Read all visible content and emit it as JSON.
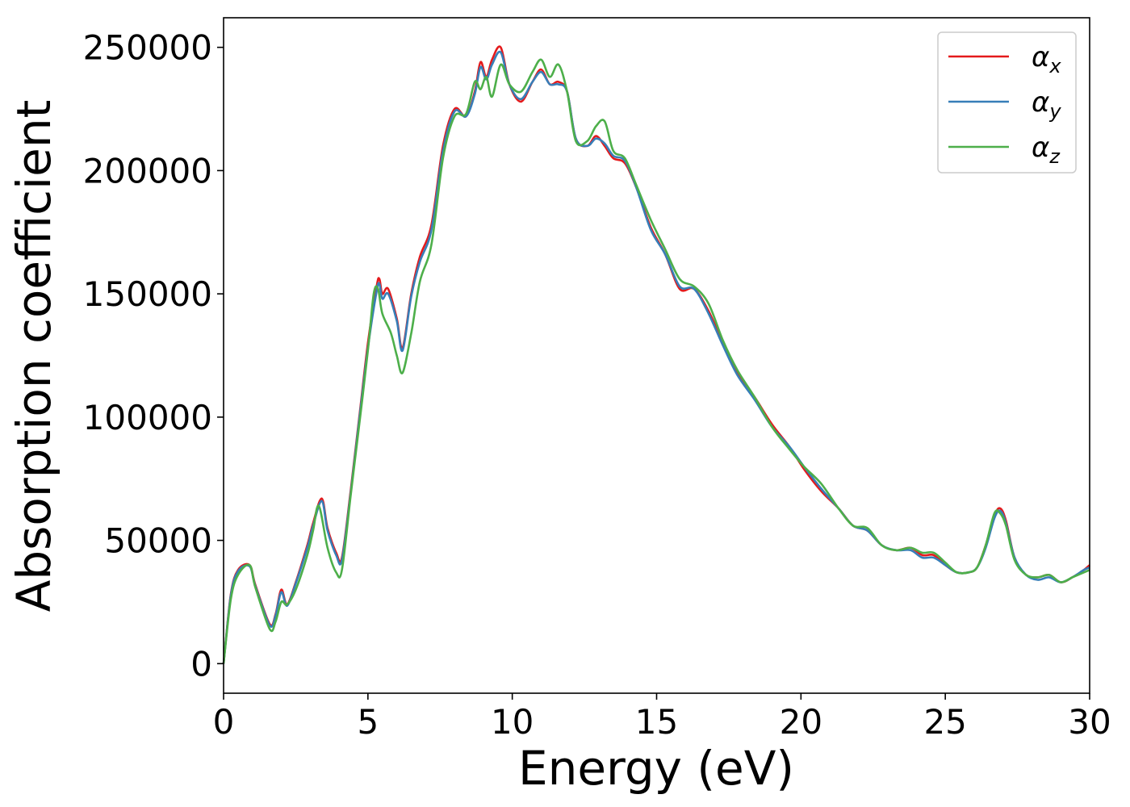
{
  "chart_data": {
    "type": "line",
    "title": "",
    "xlabel": "Energy (eV)",
    "ylabel": "Absorption coefficient",
    "xlim": [
      0,
      30
    ],
    "ylim": [
      -12000,
      262000
    ],
    "xticks": [
      0,
      5,
      10,
      15,
      20,
      25,
      30
    ],
    "xtick_labels": [
      "0",
      "5",
      "10",
      "15",
      "20",
      "25",
      "30"
    ],
    "yticks": [
      0,
      50000,
      100000,
      150000,
      200000,
      250000
    ],
    "ytick_labels": [
      "0",
      "50000",
      "100000",
      "150000",
      "200000",
      "250000"
    ],
    "grid": false,
    "legend_position": "top-right",
    "series": [
      {
        "name": "α",
        "subscript": "x",
        "color": "#e41a1c",
        "x": [
          0,
          0.25,
          0.5,
          0.9,
          1.1,
          1.6,
          1.8,
          2.0,
          2.2,
          2.5,
          2.9,
          3.1,
          3.4,
          3.6,
          3.9,
          4.1,
          4.4,
          4.7,
          5.0,
          5.3,
          5.4,
          5.5,
          5.7,
          6.0,
          6.2,
          6.5,
          6.8,
          7.2,
          7.6,
          8.0,
          8.4,
          8.7,
          8.9,
          9.1,
          9.3,
          9.6,
          9.9,
          10.3,
          10.7,
          11.0,
          11.3,
          11.6,
          11.9,
          12.2,
          12.6,
          12.9,
          13.2,
          13.5,
          13.9,
          14.3,
          14.8,
          15.3,
          15.8,
          16.3,
          16.8,
          17.3,
          17.8,
          18.4,
          19.0,
          19.6,
          20.1,
          20.7,
          21.3,
          21.8,
          22.3,
          22.8,
          23.3,
          23.8,
          24.2,
          24.6,
          25.0,
          25.4,
          25.8,
          26.1,
          26.4,
          26.7,
          26.9,
          27.1,
          27.4,
          27.8,
          28.2,
          28.6,
          29.0,
          29.4,
          29.8,
          30.0
        ],
        "y": [
          0,
          28000,
          38000,
          40000,
          32000,
          16000,
          20000,
          30000,
          24000,
          33000,
          48000,
          57000,
          67000,
          55000,
          45000,
          43000,
          70000,
          100000,
          130000,
          153000,
          156000,
          150000,
          152000,
          140000,
          128000,
          150000,
          165000,
          178000,
          210000,
          225000,
          222000,
          232000,
          244000,
          238000,
          245000,
          250000,
          235000,
          228000,
          236000,
          241000,
          235000,
          236000,
          232000,
          213000,
          210000,
          214000,
          210000,
          205000,
          203000,
          193000,
          177000,
          166000,
          152000,
          152000,
          143000,
          130000,
          118000,
          108000,
          97000,
          88000,
          79000,
          70000,
          63000,
          56000,
          54000,
          48000,
          46000,
          47000,
          44000,
          44000,
          40000,
          37000,
          37000,
          39000,
          48000,
          60000,
          63000,
          58000,
          43000,
          36000,
          35000,
          36000,
          33000,
          35000,
          38000,
          40000
        ]
      },
      {
        "name": "α",
        "subscript": "y",
        "color": "#377eb8",
        "x": [
          0,
          0.25,
          0.5,
          0.9,
          1.1,
          1.6,
          1.8,
          2.0,
          2.2,
          2.5,
          2.9,
          3.1,
          3.4,
          3.6,
          3.9,
          4.1,
          4.4,
          4.7,
          5.0,
          5.3,
          5.4,
          5.5,
          5.7,
          6.0,
          6.2,
          6.5,
          6.8,
          7.2,
          7.6,
          8.0,
          8.4,
          8.7,
          8.9,
          9.1,
          9.3,
          9.6,
          9.9,
          10.3,
          10.7,
          11.0,
          11.3,
          11.6,
          11.9,
          12.2,
          12.6,
          12.9,
          13.2,
          13.5,
          13.9,
          14.3,
          14.8,
          15.3,
          15.8,
          16.3,
          16.8,
          17.3,
          17.8,
          18.4,
          19.0,
          19.6,
          20.1,
          20.7,
          21.3,
          21.8,
          22.3,
          22.8,
          23.3,
          23.8,
          24.2,
          24.6,
          25.0,
          25.4,
          25.8,
          26.1,
          26.4,
          26.7,
          26.9,
          27.1,
          27.4,
          27.8,
          28.2,
          28.6,
          29.0,
          29.4,
          29.8,
          30.0
        ],
        "y": [
          0,
          27500,
          37500,
          39500,
          31500,
          15500,
          19500,
          29000,
          23500,
          32500,
          47000,
          56000,
          66000,
          54000,
          44000,
          42000,
          69000,
          99000,
          128000,
          151000,
          154000,
          148000,
          150000,
          139000,
          127000,
          149000,
          163000,
          176000,
          208000,
          224000,
          222000,
          231000,
          242000,
          237000,
          243000,
          248000,
          235000,
          229000,
          236000,
          240000,
          235000,
          235000,
          232000,
          213000,
          210000,
          213000,
          211000,
          206000,
          204000,
          193000,
          176000,
          166000,
          153000,
          152000,
          142000,
          129000,
          117000,
          107000,
          96000,
          88000,
          80000,
          71000,
          63000,
          56000,
          54000,
          48000,
          46000,
          46000,
          43000,
          43000,
          40000,
          37000,
          37000,
          39000,
          47000,
          59000,
          62000,
          57000,
          43000,
          36000,
          34000,
          35000,
          33000,
          35000,
          38000,
          39000
        ]
      },
      {
        "name": "α",
        "subscript": "z",
        "color": "#4daf4a",
        "x": [
          0,
          0.25,
          0.5,
          0.9,
          1.1,
          1.6,
          1.8,
          2.0,
          2.2,
          2.5,
          2.9,
          3.1,
          3.3,
          3.6,
          3.9,
          4.1,
          4.4,
          4.7,
          5.0,
          5.2,
          5.35,
          5.5,
          5.8,
          6.0,
          6.2,
          6.5,
          6.8,
          7.2,
          7.6,
          8.0,
          8.4,
          8.7,
          8.9,
          9.1,
          9.3,
          9.6,
          9.9,
          10.3,
          10.7,
          11.0,
          11.3,
          11.6,
          11.9,
          12.2,
          12.6,
          12.9,
          13.2,
          13.5,
          13.9,
          14.3,
          14.8,
          15.3,
          15.8,
          16.3,
          16.8,
          17.3,
          17.8,
          18.4,
          19.0,
          19.6,
          20.1,
          20.7,
          21.3,
          21.8,
          22.3,
          22.8,
          23.3,
          23.8,
          24.2,
          24.6,
          25.0,
          25.4,
          25.8,
          26.1,
          26.4,
          26.7,
          26.9,
          27.1,
          27.4,
          27.8,
          28.2,
          28.6,
          29.0,
          29.4,
          29.8,
          30.0
        ],
        "y": [
          0,
          26000,
          36000,
          40000,
          31000,
          14000,
          17000,
          25000,
          24000,
          30000,
          44000,
          54000,
          64000,
          47000,
          37000,
          38000,
          68000,
          97000,
          127000,
          150000,
          152000,
          142000,
          134000,
          125000,
          118000,
          134000,
          155000,
          170000,
          205000,
          222000,
          223000,
          236000,
          233000,
          238000,
          230000,
          243000,
          235000,
          232000,
          240000,
          245000,
          238000,
          243000,
          232000,
          212000,
          212000,
          218000,
          220000,
          208000,
          205000,
          194000,
          180000,
          168000,
          156000,
          153000,
          146000,
          131000,
          119000,
          108000,
          96000,
          87000,
          80000,
          73000,
          63000,
          56000,
          55000,
          48000,
          46000,
          47000,
          45000,
          45000,
          41000,
          37000,
          37000,
          39000,
          48000,
          61000,
          61000,
          56000,
          42000,
          36000,
          35000,
          36000,
          33000,
          35000,
          37000,
          38000
        ]
      }
    ]
  }
}
